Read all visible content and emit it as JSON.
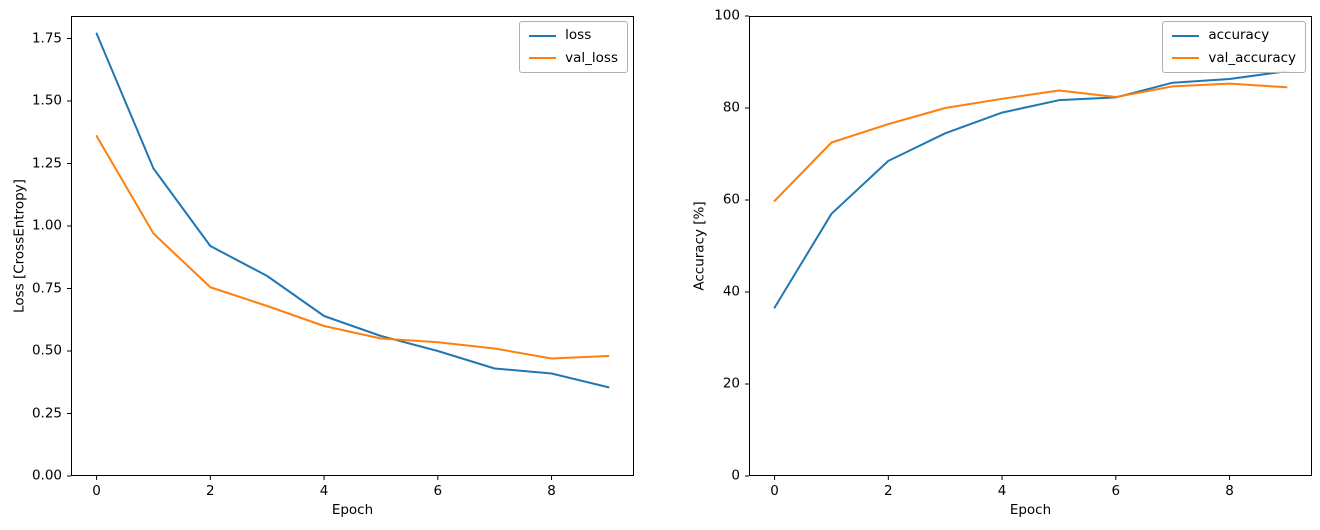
{
  "figure": {
    "background": "#ffffff"
  },
  "colors": {
    "series_blue": "#1f77b4",
    "series_orange": "#ff7f0e",
    "text": "#000000",
    "spine": "#000000",
    "legend_border": "#b0b0b0"
  },
  "chart_data": [
    {
      "type": "line",
      "title": "",
      "xlabel": "Epoch",
      "ylabel": "Loss [CrossEntropy]",
      "x": [
        0,
        1,
        2,
        3,
        4,
        5,
        6,
        7,
        8,
        9
      ],
      "xlim": [
        -0.45,
        9.45
      ],
      "ylim": [
        0,
        1.84
      ],
      "xticks": [
        0,
        2,
        4,
        6,
        8
      ],
      "xtick_labels": [
        "0",
        "2",
        "4",
        "6",
        "8"
      ],
      "yticks": [
        0,
        0.25,
        0.5,
        0.75,
        1.0,
        1.25,
        1.5,
        1.75
      ],
      "ytick_labels": [
        "0.00",
        "0.25",
        "0.50",
        "0.75",
        "1.00",
        "1.25",
        "1.50",
        "1.75"
      ],
      "grid": false,
      "legend_position": "upper right",
      "series": [
        {
          "name": "loss",
          "color": "#1f77b4",
          "values": [
            1.77,
            1.23,
            0.92,
            0.8,
            0.64,
            0.56,
            0.5,
            0.43,
            0.41,
            0.355
          ]
        },
        {
          "name": "val_loss",
          "color": "#ff7f0e",
          "values": [
            1.36,
            0.97,
            0.755,
            0.68,
            0.6,
            0.55,
            0.535,
            0.51,
            0.47,
            0.48
          ]
        }
      ]
    },
    {
      "type": "line",
      "title": "",
      "xlabel": "Epoch",
      "ylabel": "Accuracy [%]",
      "x": [
        0,
        1,
        2,
        3,
        4,
        5,
        6,
        7,
        8,
        9
      ],
      "xlim": [
        -0.45,
        9.45
      ],
      "ylim": [
        0,
        100
      ],
      "xticks": [
        0,
        2,
        4,
        6,
        8
      ],
      "xtick_labels": [
        "0",
        "2",
        "4",
        "6",
        "8"
      ],
      "yticks": [
        0,
        20,
        40,
        60,
        80,
        100
      ],
      "ytick_labels": [
        "0",
        "20",
        "40",
        "60",
        "80",
        "100"
      ],
      "grid": false,
      "legend_position": "upper right",
      "series": [
        {
          "name": "accuracy",
          "color": "#1f77b4",
          "values": [
            36.6,
            57.0,
            68.5,
            74.5,
            79.0,
            81.7,
            82.3,
            85.5,
            86.3,
            88.0
          ]
        },
        {
          "name": "val_accuracy",
          "color": "#ff7f0e",
          "values": [
            59.8,
            72.5,
            76.5,
            80.0,
            82.0,
            83.8,
            82.4,
            84.7,
            85.3,
            84.5
          ]
        }
      ]
    }
  ]
}
